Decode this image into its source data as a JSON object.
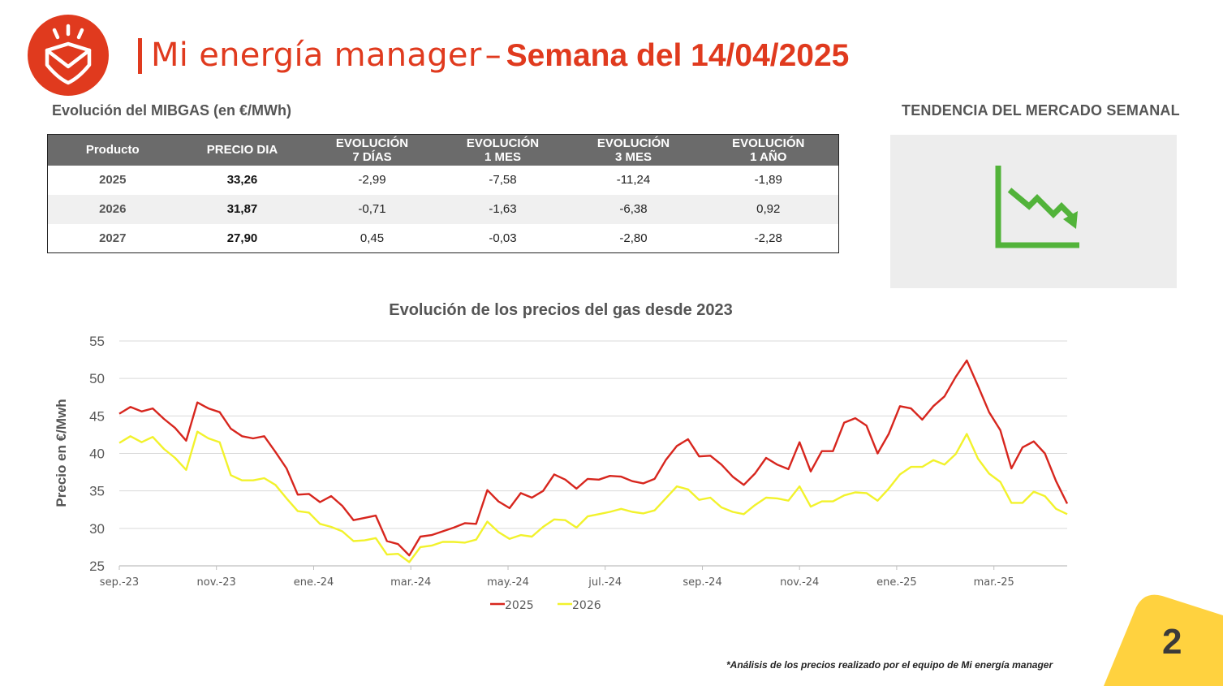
{
  "header": {
    "title_prefix": "Mi energía manager",
    "title_dash": "–",
    "title_bold": "Semana del 14/04/2025"
  },
  "table": {
    "heading": "Evolución del MIBGAS (en €/MWh)",
    "columns": [
      {
        "line1": "Producto",
        "line2": ""
      },
      {
        "line1": "PRECIO DIA",
        "line2": ""
      },
      {
        "line1": "EVOLUCIÓN",
        "line2": "7 DÍAS"
      },
      {
        "line1": "EVOLUCIÓN",
        "line2": "1 MES"
      },
      {
        "line1": "EVOLUCIÓN",
        "line2": "3 MES"
      },
      {
        "line1": "EVOLUCIÓN",
        "line2": "1 AÑO"
      }
    ],
    "rows": [
      {
        "product": "2025",
        "price": "33,26",
        "d7": "-2,99",
        "m1": "-7,58",
        "m3": "-11,24",
        "y1": "-1,89"
      },
      {
        "product": "2026",
        "price": "31,87",
        "d7": "-0,71",
        "m1": "-1,63",
        "m3": "-6,38",
        "y1": "0,92"
      },
      {
        "product": "2027",
        "price": "27,90",
        "d7": "0,45",
        "m1": "-0,03",
        "m3": "-2,80",
        "y1": "-2,28"
      }
    ]
  },
  "trend": {
    "heading": "TENDENCIA DEL MERCADO SEMANAL",
    "icon": "downtrend-chart-icon",
    "color": "#52b33a"
  },
  "colors": {
    "brand": "#e03a1e",
    "accent_yellow": "#ffd23f",
    "table_header": "#6b6b6b"
  },
  "chart_data": {
    "type": "line",
    "title": "Evolución de los precios del gas desde 2023",
    "xlabel": "",
    "ylabel": "Precio en €/Mwh",
    "ylim": [
      25,
      55
    ],
    "yticks": [
      25,
      30,
      35,
      40,
      45,
      50,
      55
    ],
    "grid": true,
    "legend": "bottom",
    "x_tick_labels": [
      "sep.-23",
      "nov.-23",
      "ene.-24",
      "mar.-24",
      "may.-24",
      "jul.-24",
      "sep.-24",
      "nov.-24",
      "ene.-25",
      "mar.-25"
    ],
    "x_tick_positions": [
      0,
      8.71,
      17.43,
      26.14,
      34.86,
      43.57,
      52.29,
      61,
      69.71,
      78.43
    ],
    "series": [
      {
        "name": "2025",
        "color": "#d7261e",
        "values": [
          45.3,
          46.2,
          45.6,
          46.0,
          44.6,
          43.4,
          41.7,
          46.8,
          46.0,
          45.5,
          43.3,
          42.3,
          42.0,
          42.3,
          40.2,
          38.0,
          34.5,
          34.6,
          33.5,
          34.3,
          33.0,
          31.1,
          31.4,
          31.7,
          28.3,
          27.9,
          26.4,
          28.9,
          29.1,
          29.6,
          30.1,
          30.7,
          30.6,
          35.1,
          33.6,
          32.7,
          34.7,
          34.1,
          35.0,
          37.2,
          36.5,
          35.3,
          36.6,
          36.5,
          37.0,
          36.9,
          36.3,
          36.0,
          36.6,
          39.1,
          41.0,
          41.9,
          39.6,
          39.7,
          38.5,
          36.9,
          35.8,
          37.3,
          39.4,
          38.5,
          37.9,
          41.5,
          37.6,
          40.3,
          40.3,
          44.1,
          44.7,
          43.7,
          40.0,
          42.6,
          46.3,
          46.0,
          44.5,
          46.3,
          47.6,
          50.2,
          52.4,
          49.0,
          45.5,
          43.1,
          38.0,
          40.8,
          41.6,
          40.0,
          36.3,
          33.3
        ]
      },
      {
        "name": "2026",
        "color": "#f2f22c",
        "values": [
          41.4,
          42.3,
          41.5,
          42.2,
          40.6,
          39.4,
          37.8,
          42.9,
          42.0,
          41.5,
          37.1,
          36.4,
          36.4,
          36.7,
          35.8,
          34.0,
          32.3,
          32.1,
          30.6,
          30.2,
          29.6,
          28.3,
          28.4,
          28.7,
          26.5,
          26.6,
          25.5,
          27.5,
          27.7,
          28.2,
          28.2,
          28.1,
          28.5,
          30.9,
          29.5,
          28.6,
          29.1,
          28.9,
          30.2,
          31.2,
          31.1,
          30.1,
          31.6,
          31.9,
          32.2,
          32.6,
          32.2,
          32.0,
          32.4,
          34.0,
          35.6,
          35.2,
          33.8,
          34.1,
          32.8,
          32.2,
          31.9,
          33.1,
          34.1,
          34.0,
          33.7,
          35.6,
          32.9,
          33.6,
          33.6,
          34.4,
          34.8,
          34.7,
          33.7,
          35.3,
          37.2,
          38.2,
          38.2,
          39.1,
          38.5,
          39.9,
          42.6,
          39.3,
          37.3,
          36.2,
          33.4,
          33.4,
          34.9,
          34.3,
          32.6,
          31.9
        ]
      }
    ]
  },
  "footnote": "*Análisis de los precios realizado por el equipo de Mi energía manager",
  "page_number": "2"
}
